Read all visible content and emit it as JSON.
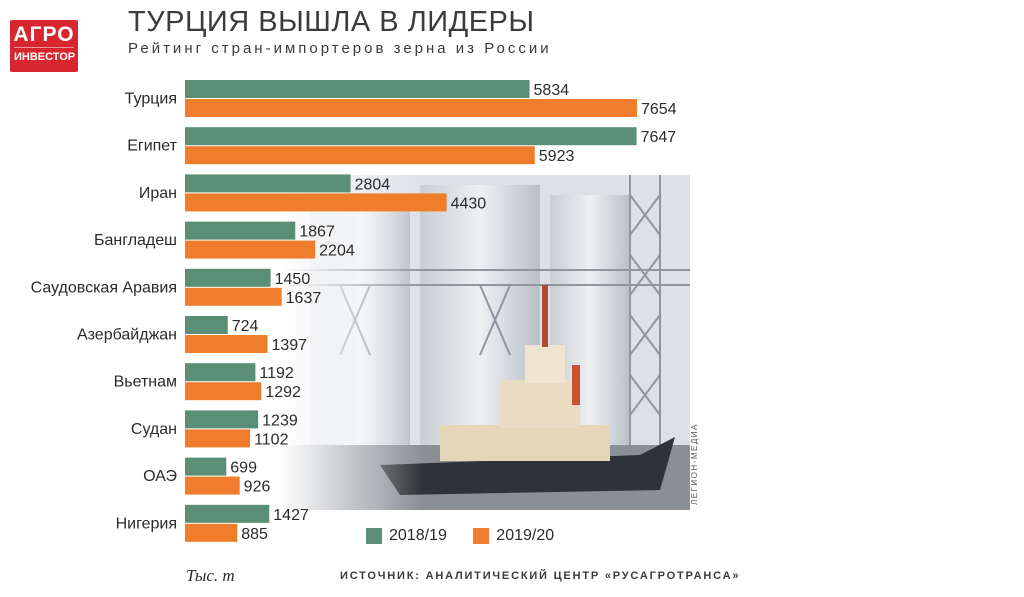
{
  "logo": {
    "line1": "АГРО",
    "line2": "ИНВЕСТОР"
  },
  "photo_credit": "ЛЕГИОН-МЕДИА",
  "units": "Тыс. т",
  "source": "ИСТОЧНИК: АНАЛИТИЧЕСКИЙ ЦЕНТР «РУСАГРОТРАНСА»",
  "colors": {
    "series_2018": "#5b8f75",
    "series_2019": "#f07d2b",
    "logo_red": "#d8262e"
  },
  "chart_data": {
    "type": "bar",
    "orientation": "horizontal",
    "title": "ТУРЦИЯ ВЫШЛА В ЛИДЕРЫ",
    "subtitle": "Рейтинг стран-импортеров зерна из России",
    "categories": [
      "Турция",
      "Египет",
      "Иран",
      "Бангладеш",
      "Саудовская Аравия",
      "Азербайджан",
      "Вьетнам",
      "Судан",
      "ОАЭ",
      "Нигерия"
    ],
    "series": [
      {
        "name": "2018/19",
        "color": "#5b8f75",
        "values": [
          5834,
          7647,
          2804,
          1867,
          1450,
          724,
          1192,
          1239,
          699,
          1427
        ]
      },
      {
        "name": "2019/20",
        "color": "#f07d2b",
        "values": [
          7654,
          5923,
          4430,
          2204,
          1637,
          1397,
          1292,
          1102,
          926,
          885
        ]
      }
    ],
    "xlim": [
      0,
      7654
    ],
    "legend_position": "bottom",
    "grid": false
  }
}
